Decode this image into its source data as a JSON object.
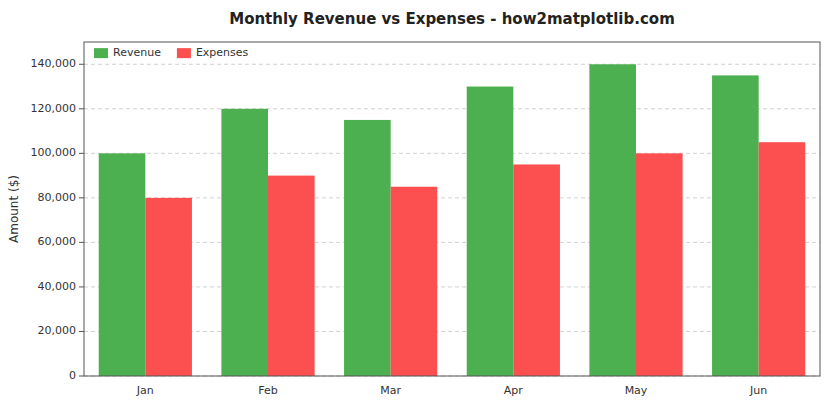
{
  "chart_data": {
    "type": "bar",
    "title": "Monthly Revenue vs Expenses - how2matplotlib.com",
    "categories": [
      "Jan",
      "Feb",
      "Mar",
      "Apr",
      "May",
      "Jun"
    ],
    "series": [
      {
        "name": "Revenue",
        "color": "#4CAF50",
        "values": [
          100000,
          120000,
          115000,
          130000,
          140000,
          135000
        ]
      },
      {
        "name": "Expenses",
        "color": "#FC4F4F",
        "values": [
          80000,
          90000,
          85000,
          95000,
          100000,
          105000
        ]
      }
    ],
    "ylabel": "Amount ($)",
    "ylim": [
      0,
      150000
    ],
    "yticks": [
      0,
      {
        "value": 20000,
        "label": "20,000"
      },
      {
        "value": 40000,
        "label": "40,000"
      },
      {
        "value": 60000,
        "label": "60,000"
      },
      {
        "value": 80000,
        "label": "80,000"
      },
      {
        "value": 100000,
        "label": "100,000"
      },
      {
        "value": 120000,
        "label": "120,000"
      },
      {
        "value": 140000,
        "label": "140,000"
      }
    ],
    "grid": true,
    "legend": "upper left"
  }
}
